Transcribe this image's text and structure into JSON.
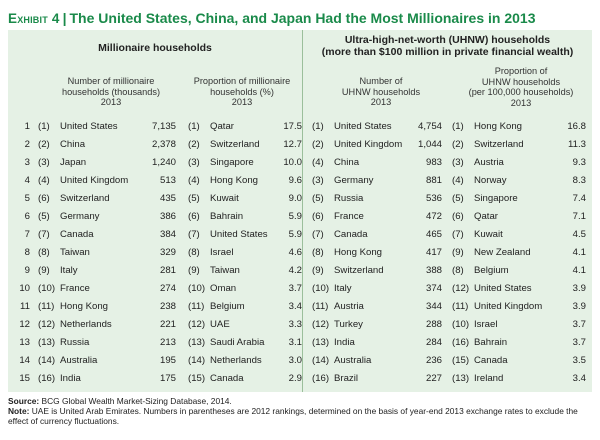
{
  "title": {
    "label": "Exhibit 4",
    "heading": "The United States, China, and Japan Had the Most Millionaires in 2013"
  },
  "groups": {
    "millionaire": "Millionaire households",
    "uhnw_line1": "Ultra-high-net-worth (UHNW) households",
    "uhnw_line2": "(more than $100 million in private financial wealth)"
  },
  "col_heads": {
    "c1": [
      "Number of millionaire",
      "households (thousands)",
      "2013"
    ],
    "c2": [
      "Proportion of millionaire",
      "households (%)",
      "2013"
    ],
    "c3": [
      "Number of",
      "UHNW households",
      "2013"
    ],
    "c4": [
      "Proportion of",
      "UHNW households",
      "(per 100,000 households)",
      "2013"
    ]
  },
  "rows": [
    {
      "rank": "1",
      "c1": {
        "prev": "(1)",
        "name": "United States",
        "value": "7,135"
      },
      "c2": {
        "prev": "(1)",
        "name": "Qatar",
        "value": "17.5"
      },
      "c3": {
        "prev": "(1)",
        "name": "United States",
        "value": "4,754"
      },
      "c4": {
        "prev": "(1)",
        "name": "Hong Kong",
        "value": "16.8"
      }
    },
    {
      "rank": "2",
      "c1": {
        "prev": "(2)",
        "name": "China",
        "value": "2,378"
      },
      "c2": {
        "prev": "(2)",
        "name": "Switzerland",
        "value": "12.7"
      },
      "c3": {
        "prev": "(2)",
        "name": "United Kingdom",
        "value": "1,044"
      },
      "c4": {
        "prev": "(2)",
        "name": "Switzerland",
        "value": "11.3"
      }
    },
    {
      "rank": "3",
      "c1": {
        "prev": "(3)",
        "name": "Japan",
        "value": "1,240"
      },
      "c2": {
        "prev": "(3)",
        "name": "Singapore",
        "value": "10.0"
      },
      "c3": {
        "prev": "(4)",
        "name": "China",
        "value": "983"
      },
      "c4": {
        "prev": "(3)",
        "name": "Austria",
        "value": "9.3"
      }
    },
    {
      "rank": "4",
      "c1": {
        "prev": "(4)",
        "name": "United Kingdom",
        "value": "513"
      },
      "c2": {
        "prev": "(4)",
        "name": "Hong Kong",
        "value": "9.6"
      },
      "c3": {
        "prev": "(3)",
        "name": "Germany",
        "value": "881"
      },
      "c4": {
        "prev": "(4)",
        "name": "Norway",
        "value": "8.3"
      }
    },
    {
      "rank": "5",
      "c1": {
        "prev": "(6)",
        "name": "Switzerland",
        "value": "435"
      },
      "c2": {
        "prev": "(5)",
        "name": "Kuwait",
        "value": "9.0"
      },
      "c3": {
        "prev": "(5)",
        "name": "Russia",
        "value": "536"
      },
      "c4": {
        "prev": "(5)",
        "name": "Singapore",
        "value": "7.4"
      }
    },
    {
      "rank": "6",
      "c1": {
        "prev": "(5)",
        "name": "Germany",
        "value": "386"
      },
      "c2": {
        "prev": "(6)",
        "name": "Bahrain",
        "value": "5.9"
      },
      "c3": {
        "prev": "(6)",
        "name": "France",
        "value": "472"
      },
      "c4": {
        "prev": "(6)",
        "name": "Qatar",
        "value": "7.1"
      }
    },
    {
      "rank": "7",
      "c1": {
        "prev": "(7)",
        "name": "Canada",
        "value": "384"
      },
      "c2": {
        "prev": "(7)",
        "name": "United States",
        "value": "5.9"
      },
      "c3": {
        "prev": "(7)",
        "name": "Canada",
        "value": "465"
      },
      "c4": {
        "prev": "(7)",
        "name": "Kuwait",
        "value": "4.5"
      }
    },
    {
      "rank": "8",
      "c1": {
        "prev": "(8)",
        "name": "Taiwan",
        "value": "329"
      },
      "c2": {
        "prev": "(8)",
        "name": "Israel",
        "value": "4.6"
      },
      "c3": {
        "prev": "(8)",
        "name": "Hong Kong",
        "value": "417"
      },
      "c4": {
        "prev": "(9)",
        "name": "New Zealand",
        "value": "4.1"
      }
    },
    {
      "rank": "9",
      "c1": {
        "prev": "(9)",
        "name": "Italy",
        "value": "281"
      },
      "c2": {
        "prev": "(9)",
        "name": "Taiwan",
        "value": "4.2"
      },
      "c3": {
        "prev": "(9)",
        "name": "Switzerland",
        "value": "388"
      },
      "c4": {
        "prev": "(8)",
        "name": "Belgium",
        "value": "4.1"
      }
    },
    {
      "rank": "10",
      "c1": {
        "prev": "(10)",
        "name": "France",
        "value": "274"
      },
      "c2": {
        "prev": "(10)",
        "name": "Oman",
        "value": "3.7"
      },
      "c3": {
        "prev": "(10)",
        "name": "Italy",
        "value": "374"
      },
      "c4": {
        "prev": "(12)",
        "name": "United States",
        "value": "3.9"
      }
    },
    {
      "rank": "11",
      "c1": {
        "prev": "(11)",
        "name": "Hong Kong",
        "value": "238"
      },
      "c2": {
        "prev": "(11)",
        "name": "Belgium",
        "value": "3.4"
      },
      "c3": {
        "prev": "(11)",
        "name": "Austria",
        "value": "344"
      },
      "c4": {
        "prev": "(11)",
        "name": "United Kingdom",
        "value": "3.9"
      }
    },
    {
      "rank": "12",
      "c1": {
        "prev": "(12)",
        "name": "Netherlands",
        "value": "221"
      },
      "c2": {
        "prev": "(12)",
        "name": "UAE",
        "value": "3.3"
      },
      "c3": {
        "prev": "(12)",
        "name": "Turkey",
        "value": "288"
      },
      "c4": {
        "prev": "(10)",
        "name": "Israel",
        "value": "3.7"
      }
    },
    {
      "rank": "13",
      "c1": {
        "prev": "(13)",
        "name": "Russia",
        "value": "213"
      },
      "c2": {
        "prev": "(13)",
        "name": "Saudi Arabia",
        "value": "3.1"
      },
      "c3": {
        "prev": "(13)",
        "name": "India",
        "value": "284"
      },
      "c4": {
        "prev": "(16)",
        "name": "Bahrain",
        "value": "3.7"
      }
    },
    {
      "rank": "14",
      "c1": {
        "prev": "(14)",
        "name": "Australia",
        "value": "195"
      },
      "c2": {
        "prev": "(14)",
        "name": "Netherlands",
        "value": "3.0"
      },
      "c3": {
        "prev": "(14)",
        "name": "Australia",
        "value": "236"
      },
      "c4": {
        "prev": "(15)",
        "name": "Canada",
        "value": "3.5"
      }
    },
    {
      "rank": "15",
      "c1": {
        "prev": "(16)",
        "name": "India",
        "value": "175"
      },
      "c2": {
        "prev": "(15)",
        "name": "Canada",
        "value": "2.9"
      },
      "c3": {
        "prev": "(16)",
        "name": "Brazil",
        "value": "227"
      },
      "c4": {
        "prev": "(13)",
        "name": "Ireland",
        "value": "3.4"
      }
    }
  ],
  "footer": {
    "source_label": "Source:",
    "source_text": "BCG Global Wealth Market-Sizing Database, 2014.",
    "note_label": "Note:",
    "note_text": "UAE is United Arab Emirates. Numbers in parentheses are 2012 rankings, determined on the basis of year-end 2013 exchange rates to exclude the effect of currency fluctuations."
  },
  "colors": {
    "accent": "#1a8a4a",
    "panel": "#e5f1e5",
    "divider": "#9bbf9b"
  }
}
